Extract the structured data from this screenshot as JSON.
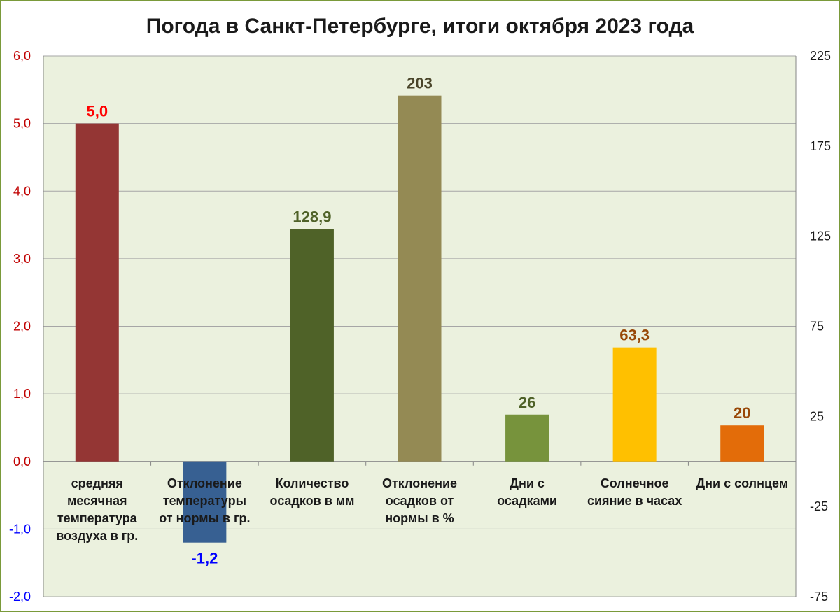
{
  "chart_data": {
    "type": "bar",
    "title": "Погода в Санкт-Петербурге, итоги октября 2023 года",
    "categories": [
      [
        "средняя",
        "месячная",
        "температура",
        "воздуха в гр."
      ],
      [
        "Отклонение",
        "температуры",
        "от нормы в гр."
      ],
      [
        "Количество",
        "осадков в мм"
      ],
      [
        "Отклонение",
        "осадков от",
        "нормы в %"
      ],
      [
        "Дни с",
        "осадками"
      ],
      [
        "Солнечное",
        "сияние в часах"
      ],
      [
        "Дни с солнцем"
      ]
    ],
    "series": [
      {
        "axis": "left",
        "value": 5.0,
        "label": "5,0",
        "color": "#943634",
        "label_color": "#ff0000"
      },
      {
        "axis": "left",
        "value": -1.2,
        "label": "-1,2",
        "color": "#376092",
        "label_color": "#0000ff"
      },
      {
        "axis": "right",
        "value": 128.9,
        "label": "128,9",
        "color": "#4f6228",
        "label_color": "#4f6228"
      },
      {
        "axis": "right",
        "value": 203,
        "label": "203",
        "color": "#948a54",
        "label_color": "#4a452a"
      },
      {
        "axis": "right",
        "value": 26,
        "label": "26",
        "color": "#77933c",
        "label_color": "#4f6228"
      },
      {
        "axis": "right",
        "value": 63.3,
        "label": "63,3",
        "color": "#ffc000",
        "label_color": "#984807"
      },
      {
        "axis": "right",
        "value": 20,
        "label": "20",
        "color": "#e36c09",
        "label_color": "#984807"
      }
    ],
    "y_left": {
      "min": -2,
      "max": 6,
      "step": 1,
      "ticks": [
        "-2,0",
        "-1,0",
        "0,0",
        "1,0",
        "2,0",
        "3,0",
        "4,0",
        "5,0",
        "6,0"
      ],
      "positive_color": "#c00000",
      "negative_color": "#0000ff"
    },
    "y_right": {
      "min": -75,
      "max": 225,
      "ticks": [
        -75,
        -25,
        25,
        75,
        125,
        175,
        225
      ]
    },
    "grid": true,
    "legend": "none"
  },
  "colors": {
    "plot_background": "#ebf1de",
    "outer_border": "#7a9a3a",
    "gridline": "#a6a6a6"
  }
}
